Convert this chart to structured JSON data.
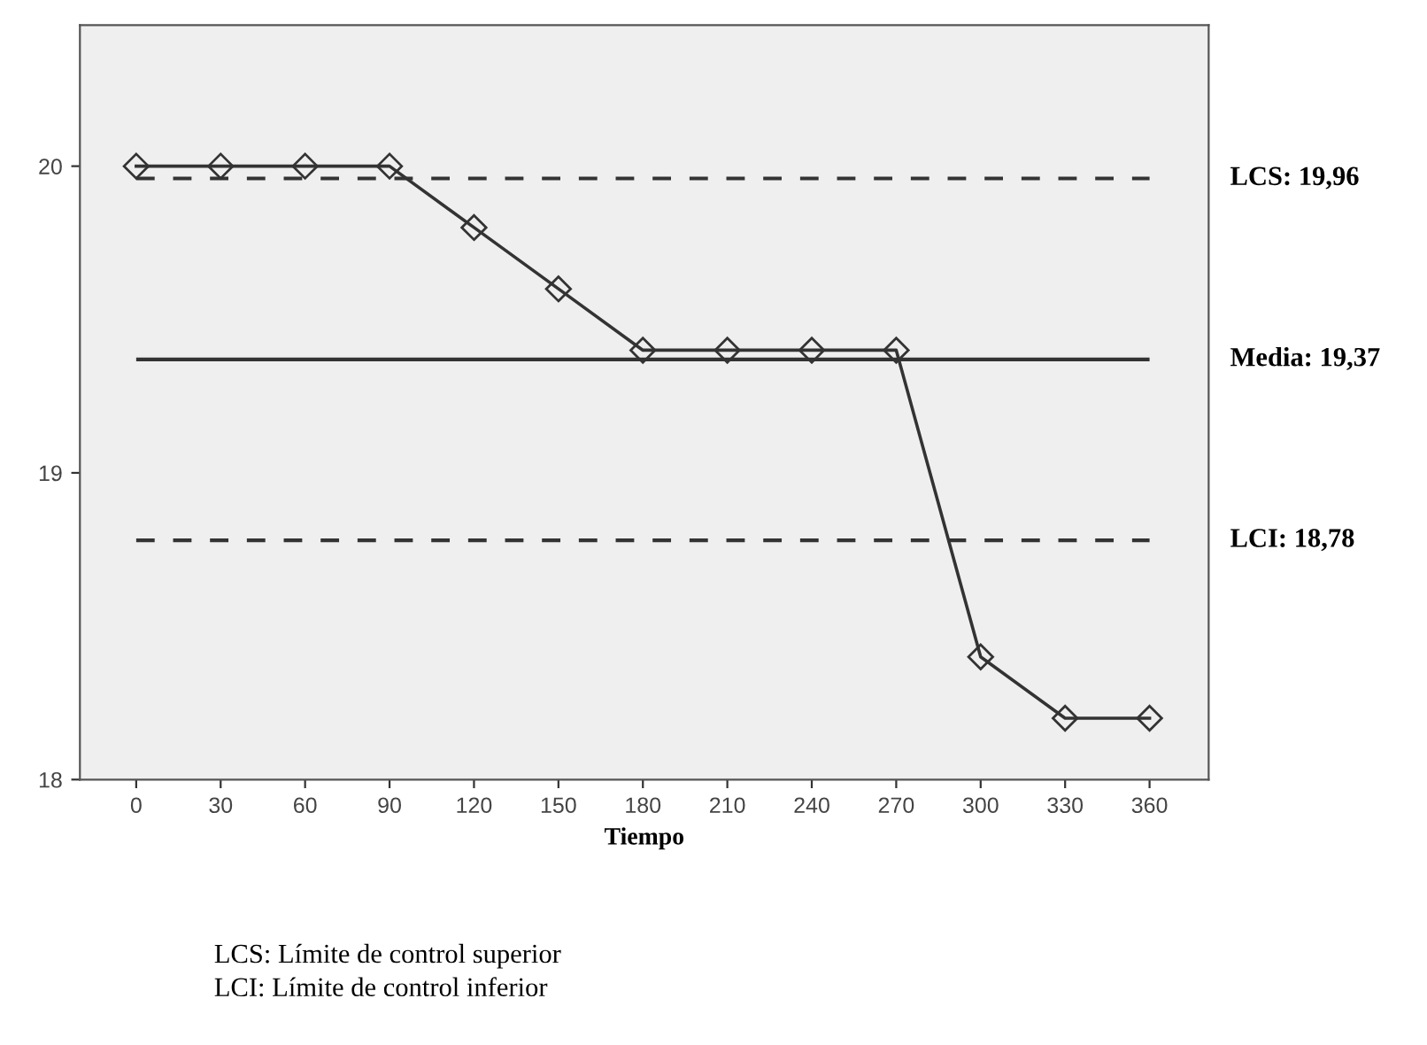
{
  "chart_data": {
    "type": "line",
    "xlabel": "Tiempo",
    "x": [
      0,
      30,
      60,
      90,
      120,
      150,
      180,
      210,
      240,
      270,
      300,
      330,
      360
    ],
    "series": [
      {
        "color": "#333333",
        "values": [
          20,
          20,
          20,
          20,
          19.8,
          19.6,
          19.4,
          19.4,
          19.4,
          19.4,
          18.4,
          18.2,
          18.2
        ]
      }
    ],
    "marker": "diamond",
    "line_style": "solid",
    "xlim": [
      -20,
      381
    ],
    "xticks": [
      0,
      30,
      60,
      90,
      120,
      150,
      180,
      210,
      240,
      270,
      300,
      330,
      360
    ],
    "ylim": [
      18,
      20.46
    ],
    "yticks": [
      18,
      19,
      20
    ],
    "grid": false,
    "legend": false,
    "ref_lines": [
      {
        "axis": "y",
        "value": 19.96,
        "label": "LCS: 19,96",
        "line_style": "dashed",
        "color": "#333333"
      },
      {
        "axis": "y",
        "value": 19.37,
        "label": "Media: 19,37",
        "line_style": "solid",
        "color": "#333333"
      },
      {
        "axis": "y",
        "value": 18.78,
        "label": "LCI: 18,78",
        "line_style": "dashed",
        "color": "#333333"
      }
    ],
    "annotations": [
      "LCS: Límite de control superior",
      "LCI: Límite de control inferior"
    ]
  }
}
